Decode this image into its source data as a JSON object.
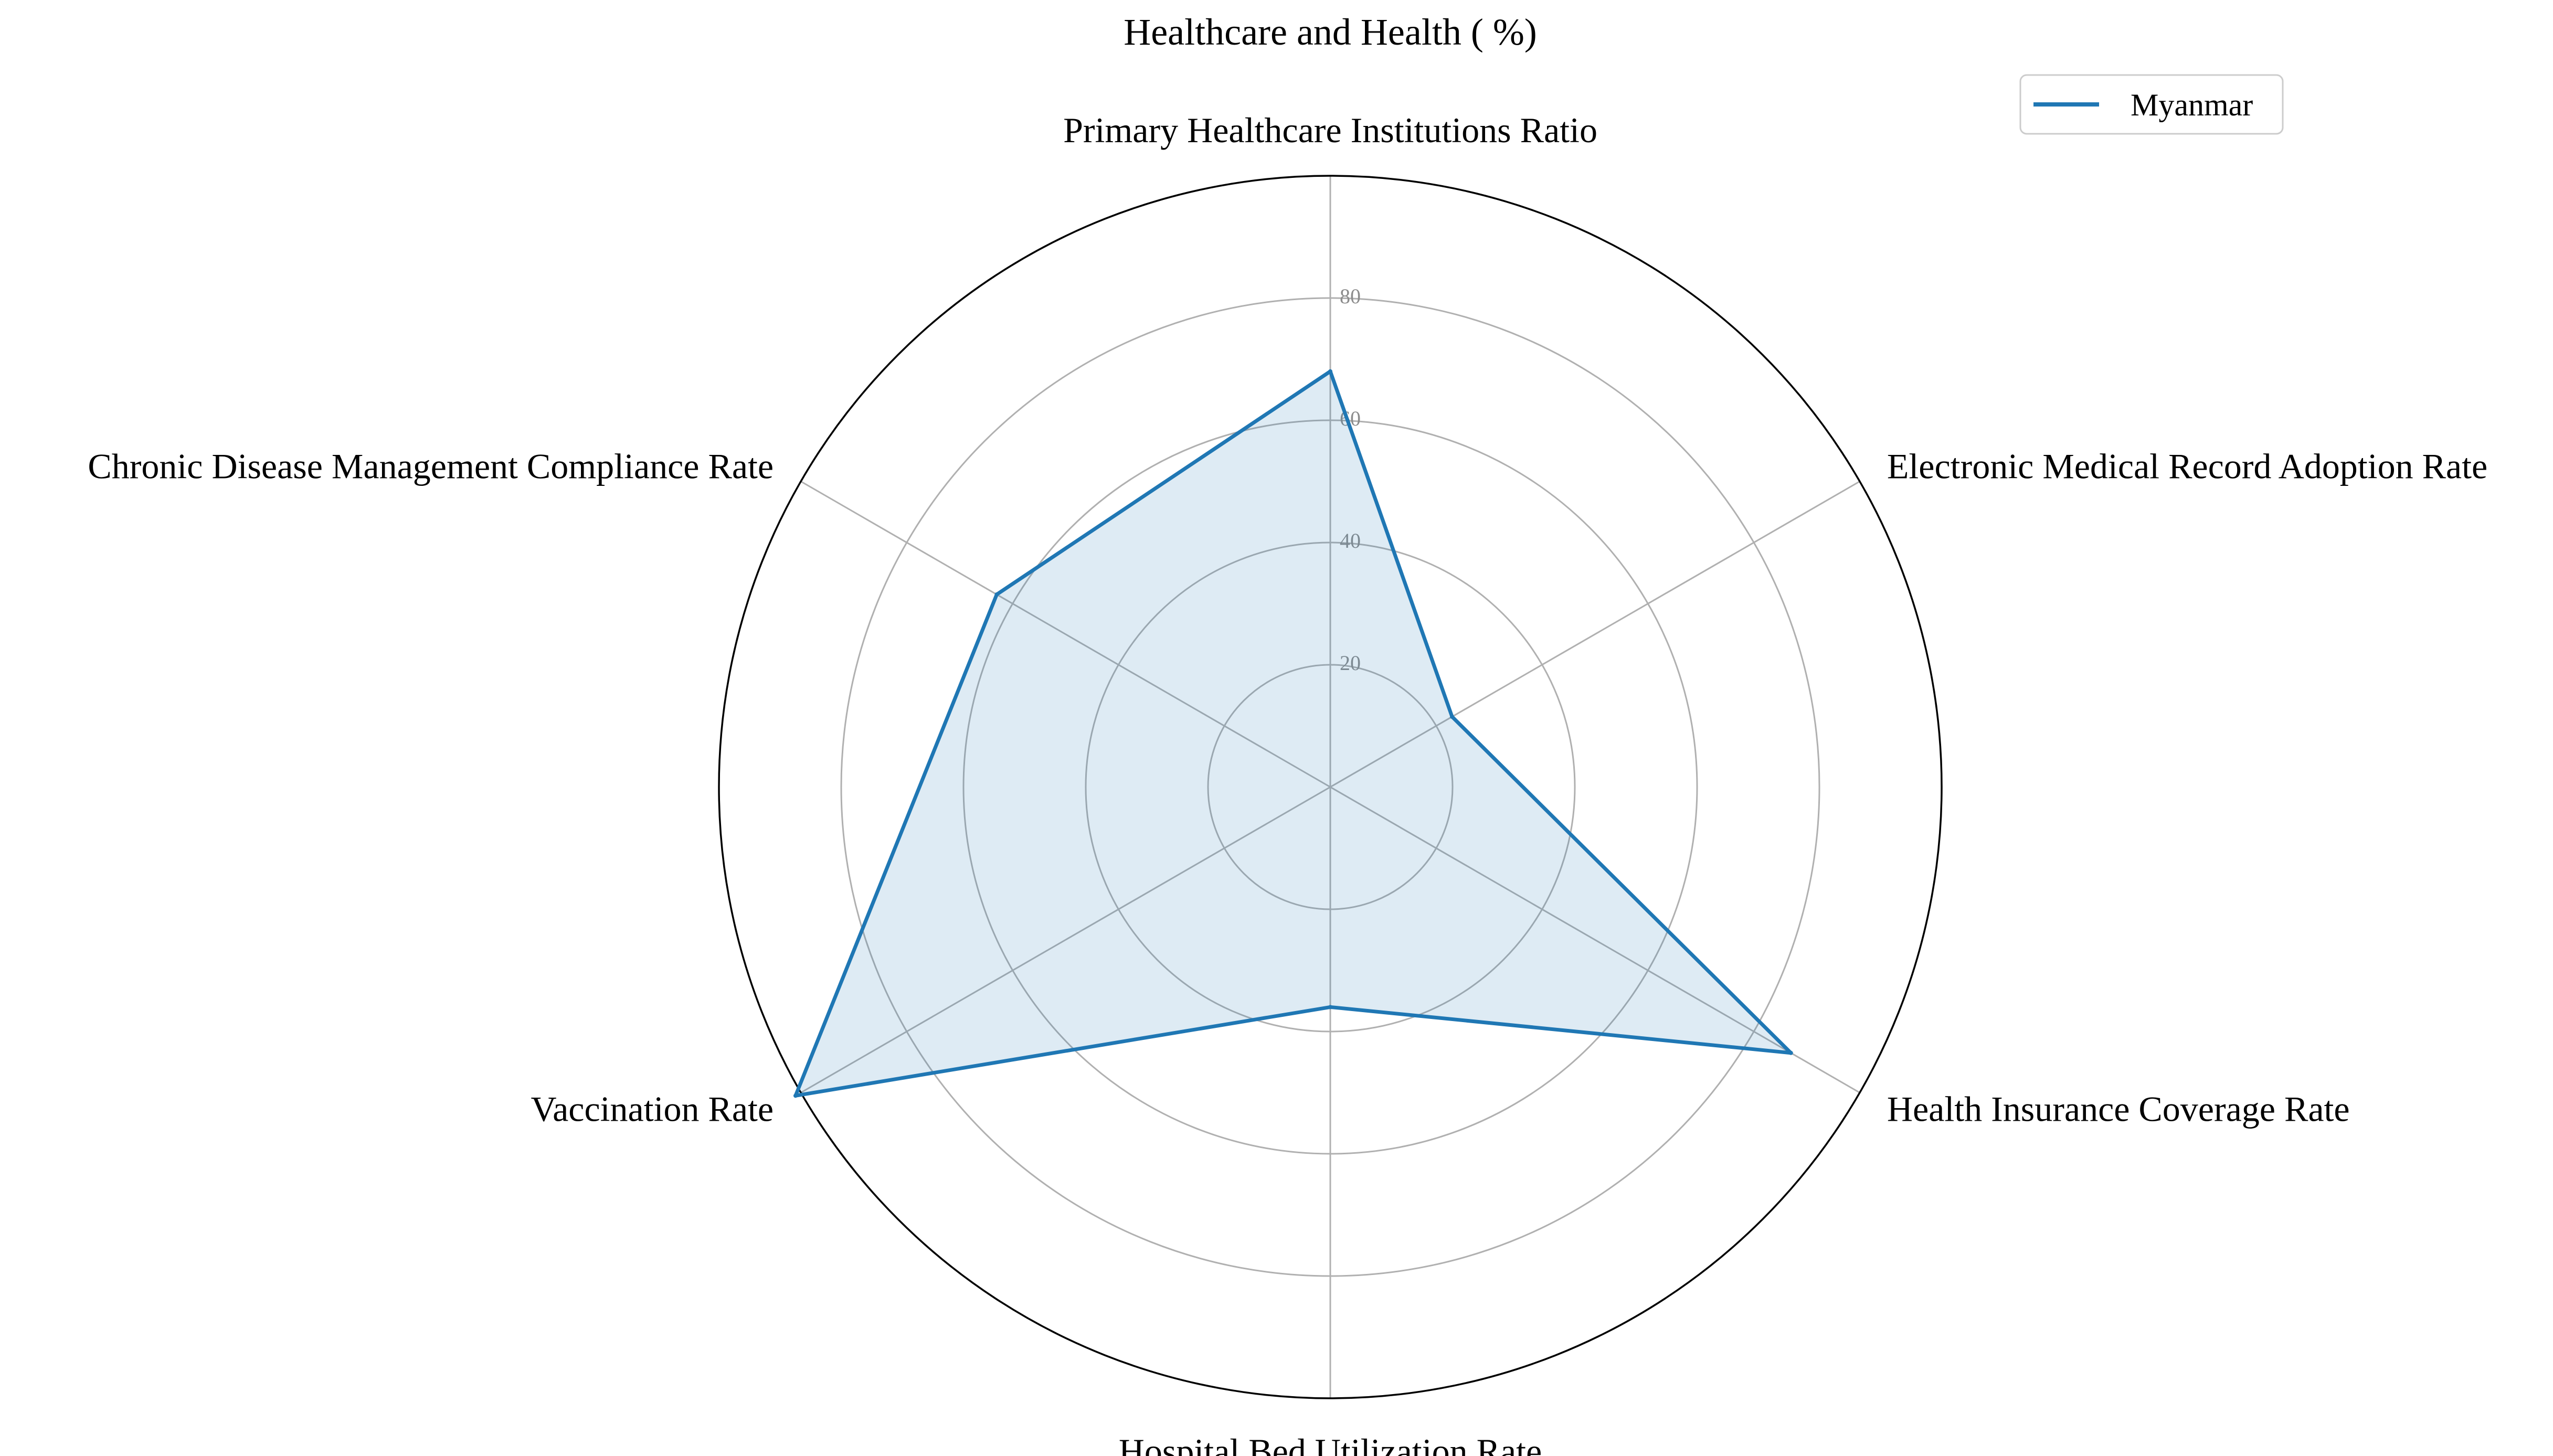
{
  "chart_data": {
    "type": "radar",
    "title": "Healthcare and Health ( %)",
    "axes": [
      "Primary Healthcare Institutions Ratio",
      "Electronic Medical Record Adoption Rate",
      "Health Insurance Coverage Rate",
      "Hospital Bed Utilization Rate",
      "Vaccination Rate",
      "Chronic Disease Management Compliance Rate"
    ],
    "radial_ticks": [
      "20",
      "40",
      "60",
      "80"
    ],
    "rmax": 100,
    "series": [
      {
        "name": "Myanmar",
        "color": "#1f77b4",
        "values": [
          68,
          23,
          87,
          36,
          101,
          63
        ]
      }
    ],
    "grid": true,
    "legend_position": "top-right"
  }
}
